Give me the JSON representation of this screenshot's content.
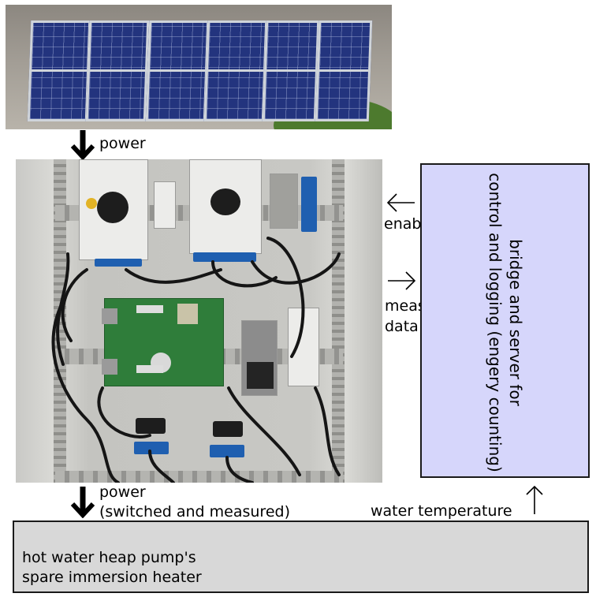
{
  "labels": {
    "power_in": "power",
    "enable": "enable",
    "measurement": "measurement\ndata",
    "power_out_line1": "power",
    "power_out_line2": "(switched and measured)",
    "water_temperature": "water temperature"
  },
  "boxes": {
    "controller": "bridge and server for\ncontrol and logging (engery counting)",
    "heater": "hot water heap pump's\nspare immersion heater"
  },
  "colors": {
    "controller_fill": "#d6d6fb",
    "heater_fill": "#d8d8d8",
    "arrow": "#000000"
  }
}
